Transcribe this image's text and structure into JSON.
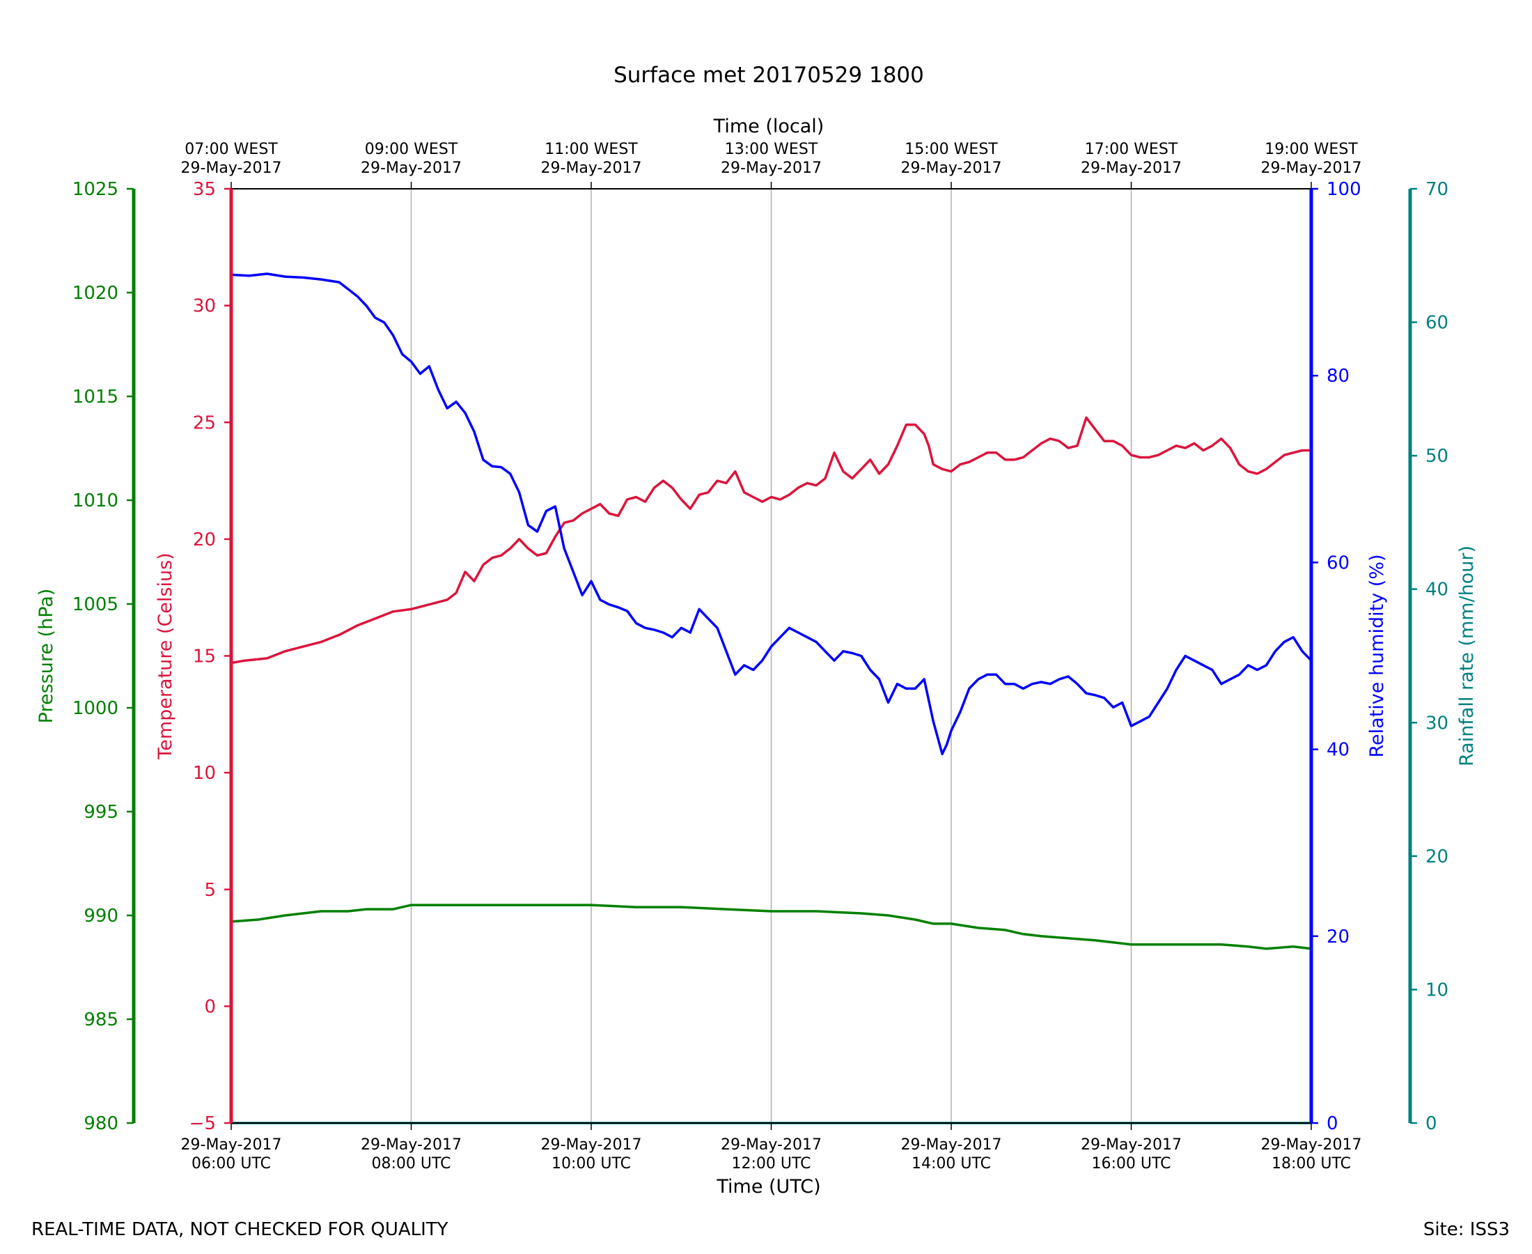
{
  "chart_data": {
    "type": "line",
    "title": "Surface met 20170529 1800",
    "xlabel": "Time (UTC)",
    "x2label": "Time (local)",
    "xlim": [
      6,
      18
    ],
    "x_ticks_utc": [
      {
        "date": "29-May-2017",
        "time": "06:00 UTC"
      },
      {
        "date": "29-May-2017",
        "time": "08:00 UTC"
      },
      {
        "date": "29-May-2017",
        "time": "10:00 UTC"
      },
      {
        "date": "29-May-2017",
        "time": "12:00 UTC"
      },
      {
        "date": "29-May-2017",
        "time": "14:00 UTC"
      },
      {
        "date": "29-May-2017",
        "time": "16:00 UTC"
      },
      {
        "date": "29-May-2017",
        "time": "18:00 UTC"
      }
    ],
    "x_ticks_local": [
      {
        "time": "07:00 WEST",
        "date": "29-May-2017"
      },
      {
        "time": "09:00 WEST",
        "date": "29-May-2017"
      },
      {
        "time": "11:00 WEST",
        "date": "29-May-2017"
      },
      {
        "time": "13:00 WEST",
        "date": "29-May-2017"
      },
      {
        "time": "15:00 WEST",
        "date": "29-May-2017"
      },
      {
        "time": "17:00 WEST",
        "date": "29-May-2017"
      },
      {
        "time": "19:00 WEST",
        "date": "29-May-2017"
      }
    ],
    "grid": "vertical",
    "axes": [
      {
        "id": "pressure",
        "label": "Pressure (hPa)",
        "color": "#008000",
        "side": "left-outer",
        "ylim": [
          980,
          1025
        ],
        "ticks": [
          980,
          985,
          990,
          995,
          1000,
          1005,
          1010,
          1015,
          1020,
          1025
        ]
      },
      {
        "id": "temperature",
        "label": "Temperature (Celsius)",
        "color": "#dc143c",
        "side": "left-inner",
        "ylim": [
          -5,
          35
        ],
        "ticks": [
          -5,
          0,
          5,
          10,
          15,
          20,
          25,
          30,
          35
        ]
      },
      {
        "id": "humidity",
        "label": "Relative humidity (%)",
        "color": "#0000ff",
        "side": "right-inner",
        "ylim": [
          0,
          100
        ],
        "ticks": [
          0,
          20,
          40,
          60,
          80,
          100
        ]
      },
      {
        "id": "rainfall",
        "label": "Rainfall rate (mm/hour)",
        "color": "#008080",
        "side": "right-outer",
        "ylim": [
          0,
          70
        ],
        "ticks": [
          0,
          10,
          20,
          30,
          40,
          50,
          60,
          70
        ]
      }
    ],
    "series": [
      {
        "name": "Temperature",
        "axis": "temperature",
        "color": "#dc143c",
        "x": [
          6.0,
          6.15,
          6.4,
          6.6,
          6.8,
          7.0,
          7.2,
          7.4,
          7.6,
          7.8,
          8.0,
          8.2,
          8.4,
          8.5,
          8.6,
          8.7,
          8.8,
          8.9,
          9.0,
          9.1,
          9.2,
          9.3,
          9.4,
          9.5,
          9.6,
          9.7,
          9.8,
          9.9,
          10.0,
          10.1,
          10.2,
          10.3,
          10.4,
          10.5,
          10.6,
          10.7,
          10.8,
          10.9,
          11.0,
          11.1,
          11.2,
          11.3,
          11.4,
          11.5,
          11.6,
          11.7,
          11.8,
          11.9,
          12.0,
          12.1,
          12.2,
          12.3,
          12.4,
          12.5,
          12.6,
          12.7,
          12.8,
          12.9,
          13.0,
          13.1,
          13.2,
          13.3,
          13.4,
          13.5,
          13.6,
          13.7,
          13.75,
          13.8,
          13.9,
          14.0,
          14.1,
          14.2,
          14.3,
          14.4,
          14.5,
          14.6,
          14.7,
          14.8,
          14.9,
          15.0,
          15.1,
          15.2,
          15.3,
          15.4,
          15.5,
          15.6,
          15.7,
          15.8,
          15.9,
          16.0,
          16.1,
          16.2,
          16.3,
          16.4,
          16.5,
          16.6,
          16.7,
          16.8,
          16.9,
          17.0,
          17.1,
          17.2,
          17.3,
          17.4,
          17.5,
          17.6,
          17.7,
          17.8,
          17.9,
          18.0
        ],
        "y": [
          14.7,
          14.8,
          14.9,
          15.2,
          15.4,
          15.6,
          15.9,
          16.3,
          16.6,
          16.9,
          17.0,
          17.2,
          17.4,
          17.7,
          18.6,
          18.2,
          18.9,
          19.2,
          19.3,
          19.6,
          20.0,
          19.6,
          19.3,
          19.4,
          20.1,
          20.7,
          20.8,
          21.1,
          21.3,
          21.5,
          21.1,
          21.0,
          21.7,
          21.8,
          21.6,
          22.2,
          22.5,
          22.2,
          21.7,
          21.3,
          21.9,
          22.0,
          22.5,
          22.4,
          22.9,
          22.0,
          21.8,
          21.6,
          21.8,
          21.7,
          21.9,
          22.2,
          22.4,
          22.3,
          22.6,
          23.7,
          22.9,
          22.6,
          23.0,
          23.4,
          22.8,
          23.2,
          24.0,
          24.9,
          24.9,
          24.5,
          24.0,
          23.2,
          23.0,
          22.9,
          23.2,
          23.3,
          23.5,
          23.7,
          23.7,
          23.4,
          23.4,
          23.5,
          23.8,
          24.1,
          24.3,
          24.2,
          23.9,
          24.0,
          25.2,
          24.7,
          24.2,
          24.2,
          24.0,
          23.6,
          23.5,
          23.5,
          23.6,
          23.8,
          24.0,
          23.9,
          24.1,
          23.8,
          24.0,
          24.3,
          23.9,
          23.2,
          22.9,
          22.8,
          23.0,
          23.3,
          23.6,
          23.7,
          23.8,
          23.8
        ]
      },
      {
        "name": "Relative humidity",
        "axis": "humidity",
        "color": "#0000ff",
        "x": [
          6.0,
          6.2,
          6.4,
          6.6,
          6.8,
          7.0,
          7.2,
          7.4,
          7.5,
          7.6,
          7.7,
          7.8,
          7.9,
          8.0,
          8.1,
          8.2,
          8.3,
          8.4,
          8.5,
          8.6,
          8.7,
          8.8,
          8.9,
          9.0,
          9.1,
          9.2,
          9.3,
          9.4,
          9.5,
          9.6,
          9.7,
          9.8,
          9.9,
          10.0,
          10.1,
          10.2,
          10.3,
          10.4,
          10.5,
          10.6,
          10.7,
          10.8,
          10.9,
          11.0,
          11.1,
          11.2,
          11.3,
          11.4,
          11.5,
          11.6,
          11.7,
          11.8,
          11.9,
          12.0,
          12.1,
          12.2,
          12.3,
          12.4,
          12.5,
          12.6,
          12.7,
          12.8,
          12.9,
          13.0,
          13.1,
          13.2,
          13.3,
          13.4,
          13.5,
          13.6,
          13.7,
          13.8,
          13.9,
          13.95,
          14.0,
          14.1,
          14.2,
          14.3,
          14.4,
          14.5,
          14.6,
          14.7,
          14.8,
          14.9,
          15.0,
          15.1,
          15.2,
          15.3,
          15.4,
          15.5,
          15.6,
          15.7,
          15.8,
          15.9,
          16.0,
          16.1,
          16.2,
          16.3,
          16.4,
          16.5,
          16.6,
          16.7,
          16.8,
          16.9,
          17.0,
          17.1,
          17.2,
          17.3,
          17.4,
          17.5,
          17.6,
          17.7,
          17.8,
          17.9,
          18.0
        ],
        "y": [
          90.8,
          90.7,
          90.9,
          90.6,
          90.5,
          90.3,
          90.0,
          88.5,
          87.5,
          86.2,
          85.7,
          84.3,
          82.3,
          81.5,
          80.2,
          81.0,
          78.5,
          76.5,
          77.2,
          76.0,
          74.0,
          71.0,
          70.3,
          70.2,
          69.5,
          67.5,
          64.0,
          63.3,
          65.5,
          66.0,
          61.5,
          59.0,
          56.5,
          58.0,
          56.0,
          55.5,
          55.2,
          54.8,
          53.5,
          53.0,
          52.8,
          52.5,
          52.0,
          53.0,
          52.5,
          55.0,
          54.0,
          53.0,
          50.5,
          48.0,
          49.0,
          48.5,
          49.5,
          51.0,
          52.0,
          53.0,
          52.5,
          52.0,
          51.5,
          50.5,
          49.5,
          50.5,
          50.3,
          50.0,
          48.5,
          47.5,
          45.0,
          47.0,
          46.5,
          46.5,
          47.5,
          43.0,
          39.5,
          40.5,
          42.0,
          44.0,
          46.5,
          47.5,
          48.0,
          48.0,
          47.0,
          47.0,
          46.5,
          47.0,
          47.2,
          47.0,
          47.5,
          47.8,
          47.0,
          46.0,
          45.8,
          45.5,
          44.5,
          45.0,
          42.5,
          43.0,
          43.5,
          45.0,
          46.5,
          48.5,
          50.0,
          49.5,
          49.0,
          48.5,
          47.0,
          47.5,
          48.0,
          49.0,
          48.5,
          49.0,
          50.5,
          51.5,
          52.0,
          50.5,
          49.5
        ]
      },
      {
        "name": "Pressure",
        "axis": "pressure",
        "color": "#008000",
        "x": [
          6.0,
          6.3,
          6.6,
          6.8,
          7.0,
          7.3,
          7.5,
          7.8,
          8.0,
          8.5,
          9.0,
          9.5,
          10.0,
          10.5,
          11.0,
          11.5,
          12.0,
          12.5,
          13.0,
          13.3,
          13.6,
          13.8,
          14.0,
          14.3,
          14.6,
          14.8,
          15.0,
          15.3,
          15.6,
          15.8,
          16.0,
          16.3,
          16.6,
          16.8,
          17.0,
          17.3,
          17.5,
          17.8,
          18.0
        ],
        "y": [
          989.7,
          989.8,
          990.0,
          990.1,
          990.2,
          990.2,
          990.3,
          990.3,
          990.5,
          990.5,
          990.5,
          990.5,
          990.5,
          990.4,
          990.4,
          990.3,
          990.2,
          990.2,
          990.1,
          990.0,
          989.8,
          989.6,
          989.6,
          989.4,
          989.3,
          989.1,
          989.0,
          988.9,
          988.8,
          988.7,
          988.6,
          988.6,
          988.6,
          988.6,
          988.6,
          988.5,
          988.4,
          988.5,
          988.4
        ]
      },
      {
        "name": "Rainfall rate",
        "axis": "rainfall",
        "color": "#008080",
        "x": [
          6.0,
          18.0
        ],
        "y": [
          0.0,
          0.0
        ]
      }
    ]
  },
  "footer": {
    "left": "REAL-TIME DATA, NOT CHECKED FOR QUALITY",
    "right": "Site: ISS3"
  }
}
